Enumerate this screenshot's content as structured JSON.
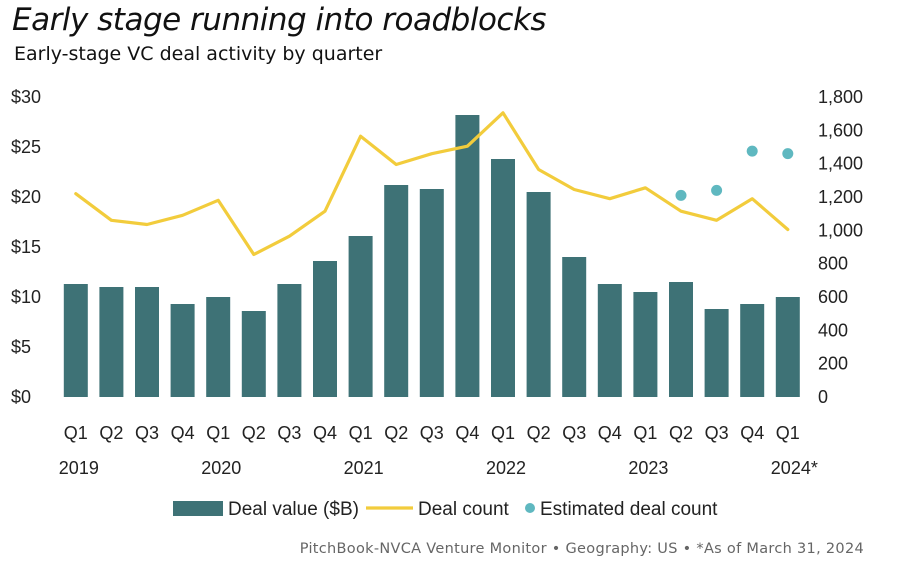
{
  "header": {
    "title": "Early stage running into roadblocks",
    "subtitle": "Early-stage VC deal activity by quarter"
  },
  "source": "PitchBook-NVCA Venture Monitor  •  Geography: US  •  *As of March 31, 2024",
  "colors": {
    "bar": "#3e7276",
    "line": "#f2cc3c",
    "estimate": "#5fb8c0"
  },
  "chart_data": {
    "type": "bar",
    "quarters": [
      "Q1",
      "Q2",
      "Q3",
      "Q4",
      "Q1",
      "Q2",
      "Q3",
      "Q4",
      "Q1",
      "Q2",
      "Q3",
      "Q4",
      "Q1",
      "Q2",
      "Q3",
      "Q4",
      "Q1",
      "Q2",
      "Q3",
      "Q4",
      "Q1"
    ],
    "years": [
      {
        "label": "2019",
        "index": 0
      },
      {
        "label": "2020",
        "index": 4
      },
      {
        "label": "2021",
        "index": 8
      },
      {
        "label": "2022",
        "index": 12
      },
      {
        "label": "2023",
        "index": 16
      },
      {
        "label": "2024*",
        "index": 20
      }
    ],
    "y_left": {
      "ticks": [
        "$0",
        "$5",
        "$10",
        "$15",
        "$20",
        "$25",
        "$30"
      ],
      "range": [
        0,
        30
      ]
    },
    "y_right": {
      "ticks": [
        "0",
        "200",
        "400",
        "600",
        "800",
        "1,000",
        "1,200",
        "1,400",
        "1,600",
        "1,800"
      ],
      "range": [
        0,
        1800
      ]
    },
    "series": [
      {
        "name": "Deal value ($B)",
        "kind": "bar",
        "axis": "left",
        "values": [
          11.3,
          11.0,
          11.0,
          9.3,
          10.0,
          8.6,
          11.3,
          13.6,
          16.1,
          21.2,
          20.8,
          28.2,
          23.8,
          20.5,
          14.0,
          11.3,
          10.5,
          11.5,
          8.8,
          9.3,
          10.0
        ]
      },
      {
        "name": "Deal count",
        "kind": "line",
        "axis": "right",
        "values": [
          1220,
          1060,
          1035,
          1090,
          1180,
          855,
          965,
          1115,
          1565,
          1395,
          1460,
          1505,
          1705,
          1365,
          1245,
          1190,
          1255,
          1115,
          1060,
          1190,
          1005
        ]
      },
      {
        "name": "Estimated deal count",
        "kind": "scatter",
        "axis": "right",
        "points": [
          {
            "index": 17,
            "value": 1210
          },
          {
            "index": 18,
            "value": 1240
          },
          {
            "index": 19,
            "value": 1475
          },
          {
            "index": 20,
            "value": 1460
          }
        ]
      }
    ]
  }
}
